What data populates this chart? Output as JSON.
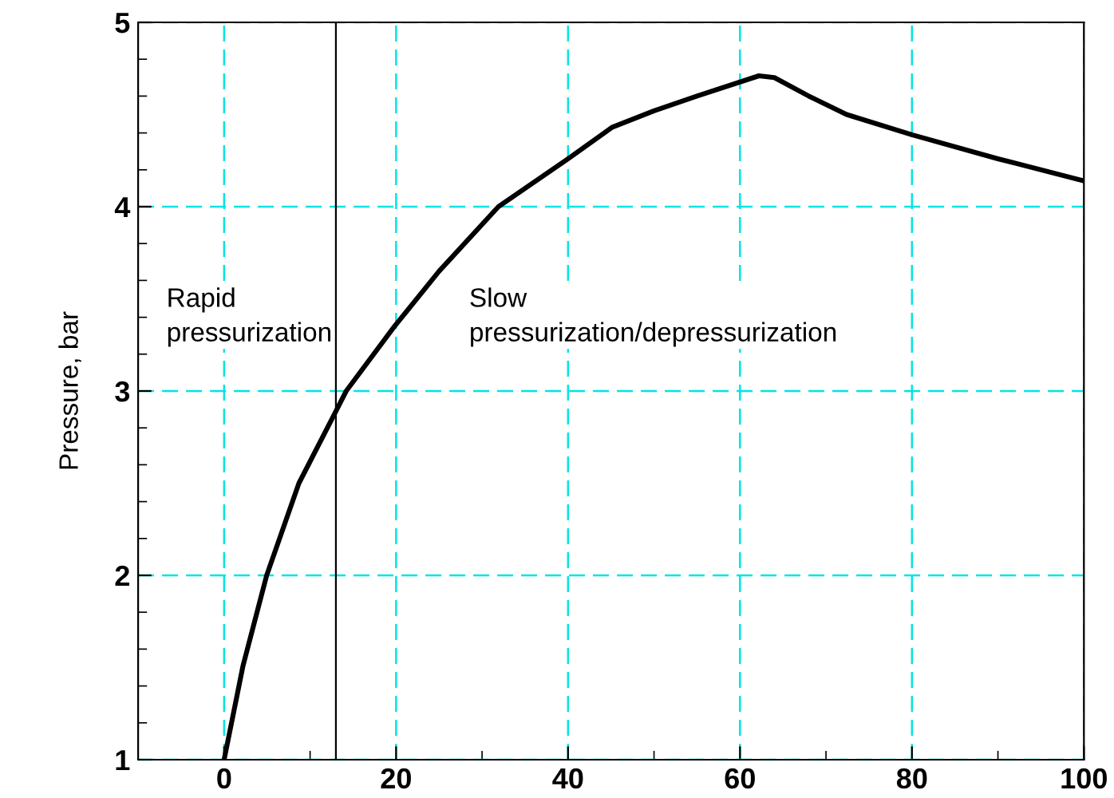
{
  "chart_data": {
    "type": "line",
    "ylabel": "Pressure, bar",
    "series": [
      {
        "color": "#000000",
        "x": [
          0,
          2.2,
          4.95,
          8.7,
          13,
          14.2,
          19.8,
          25,
          31.9,
          40,
          45.1,
          50,
          55,
          62.2,
          64,
          68,
          72.4,
          80,
          90,
          100
        ],
        "values": [
          1,
          1.51,
          2,
          2.5,
          2.89,
          3,
          3.35,
          3.65,
          4,
          4.26,
          4.43,
          4.52,
          4.6,
          4.71,
          4.7,
          4.6,
          4.5,
          4.39,
          4.26,
          4.14
        ]
      }
    ],
    "xlim": [
      -10,
      100
    ],
    "xticks": [
      0,
      20,
      40,
      60,
      80,
      100
    ],
    "ylim": [
      1,
      5
    ],
    "yticks": [
      1,
      2,
      3,
      4,
      5
    ],
    "grid": true,
    "line_style": "solid",
    "marker": "none",
    "ref_lines": [
      {
        "axis": "x",
        "value": 13,
        "color": "#000000"
      }
    ],
    "annotations": [
      "Rapid\npressurization",
      "Slow\npressurization/depressurization"
    ]
  }
}
